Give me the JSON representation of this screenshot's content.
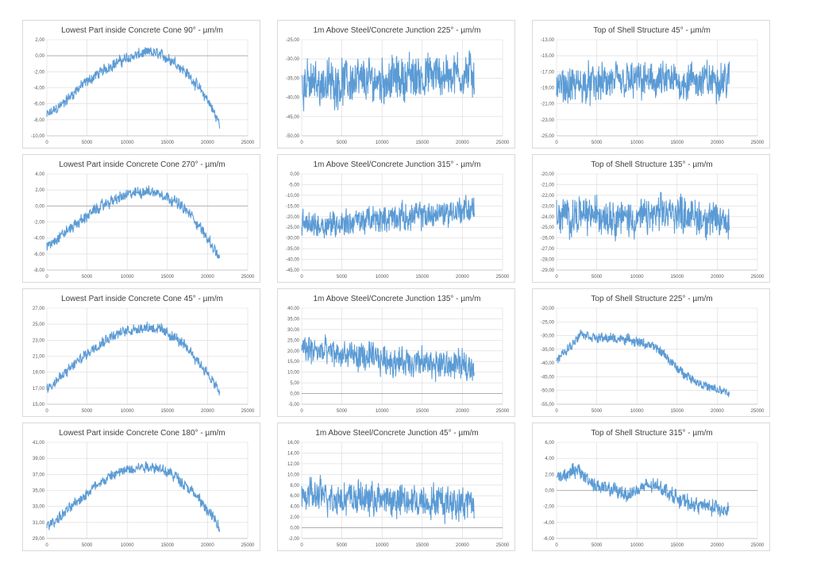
{
  "colors": {
    "series": "#5b9bd5",
    "grid": "#d9d9d9",
    "text": "#404040",
    "border": "#d9d9d9"
  },
  "chart_data": [
    {
      "type": "line",
      "title": "Lowest Part inside Concrete Cone 90° - µm/m",
      "xlim": [
        0,
        25000
      ],
      "ylim": [
        -10,
        2
      ],
      "xticks": [
        "0",
        "5000",
        "10000",
        "15000",
        "20000",
        "25000"
      ],
      "yticks": [
        "-10,00",
        "-8,00",
        "-6,00",
        "-4,00",
        "-2,00",
        "0,00",
        "2,00"
      ],
      "series": [
        {
          "x": [
            0,
            2000,
            4000,
            6000,
            8000,
            10000,
            12000,
            13000,
            14000,
            16000,
            18000,
            20000,
            21500
          ],
          "y": [
            -7.5,
            -6,
            -4,
            -2.5,
            -1.2,
            -0.3,
            0.3,
            0.4,
            0.2,
            -0.8,
            -2.8,
            -5.5,
            -8.5
          ],
          "band": 1.2
        }
      ],
      "grid": true
    },
    {
      "type": "line",
      "title": "1m Above Steel/Concrete Junction 225° - µm/m",
      "xlim": [
        0,
        25000
      ],
      "ylim": [
        -50,
        -25
      ],
      "xticks": [
        "0",
        "5000",
        "10000",
        "15000",
        "20000",
        "25000"
      ],
      "yticks": [
        "-50,00",
        "-45,00",
        "-40,00",
        "-35,00",
        "-30,00",
        "-25,00"
      ],
      "series": [
        {
          "x": [
            0,
            5000,
            10000,
            15000,
            20000,
            21500
          ],
          "y": [
            -36.5,
            -36,
            -35.5,
            -34.5,
            -34,
            -34
          ],
          "band": 10
        }
      ],
      "grid": true
    },
    {
      "type": "line",
      "title": "Top of Shell Structure 45° - µm/m",
      "xlim": [
        0,
        25000
      ],
      "ylim": [
        -25,
        -13
      ],
      "xticks": [
        "0",
        "5000",
        "10000",
        "15000",
        "20000",
        "25000"
      ],
      "yticks": [
        "-25,00",
        "-23,00",
        "-21,00",
        "-19,00",
        "-17,00",
        "-15,00",
        "-13,00"
      ],
      "series": [
        {
          "x": [
            0,
            5000,
            10000,
            15000,
            20000,
            21500
          ],
          "y": [
            -19,
            -18.5,
            -18.2,
            -18.3,
            -18,
            -18
          ],
          "band": 4
        }
      ],
      "grid": true
    },
    {
      "type": "line",
      "title": "Lowest Part inside Concrete Cone 270° - µm/m",
      "xlim": [
        0,
        25000
      ],
      "ylim": [
        -8,
        4
      ],
      "xticks": [
        "0",
        "5000",
        "10000",
        "15000",
        "20000",
        "25000"
      ],
      "yticks": [
        "-8,00",
        "-6,00",
        "-4,00",
        "-2,00",
        "0,00",
        "2,00",
        "4,00"
      ],
      "series": [
        {
          "x": [
            0,
            2000,
            4000,
            6000,
            8000,
            10000,
            12000,
            13000,
            14000,
            16000,
            18000,
            20000,
            21500
          ],
          "y": [
            -5,
            -3.5,
            -2,
            -0.5,
            0.6,
            1.4,
            1.8,
            1.8,
            1.6,
            0.6,
            -1.2,
            -4,
            -6.5
          ],
          "band": 1.2
        }
      ],
      "grid": true
    },
    {
      "type": "line",
      "title": "1m Above Steel/Concrete Junction 315° - µm/m",
      "xlim": [
        0,
        25000
      ],
      "ylim": [
        -45,
        0
      ],
      "xticks": [
        "0",
        "5000",
        "10000",
        "15000",
        "20000",
        "25000"
      ],
      "yticks": [
        "-45,00",
        "-40,00",
        "-35,00",
        "-30,00",
        "-25,00",
        "-20,00",
        "-15,00",
        "-10,00",
        "-5,00",
        "0,00"
      ],
      "series": [
        {
          "x": [
            0,
            5000,
            10000,
            15000,
            20000,
            21500
          ],
          "y": [
            -24,
            -23,
            -21,
            -19.5,
            -17,
            -16
          ],
          "band": 11
        }
      ],
      "grid": true
    },
    {
      "type": "line",
      "title": "Top of Shell Structure 135° - µm/m",
      "xlim": [
        0,
        25000
      ],
      "ylim": [
        -29,
        -20
      ],
      "xticks": [
        "0",
        "5000",
        "10000",
        "15000",
        "20000",
        "25000"
      ],
      "yticks": [
        "-29,00",
        "-28,00",
        "-27,00",
        "-26,00",
        "-25,00",
        "-24,00",
        "-23,00",
        "-22,00",
        "-21,00",
        "-20,00"
      ],
      "series": [
        {
          "x": [
            0,
            5000,
            10000,
            15000,
            20000,
            21500
          ],
          "y": [
            -24,
            -23.8,
            -24.2,
            -23.5,
            -24.5,
            -24.5
          ],
          "band": 3
        }
      ],
      "grid": true
    },
    {
      "type": "line",
      "title": "Lowest Part inside Concrete Cone 45° - µm/m",
      "xlim": [
        0,
        25000
      ],
      "ylim": [
        15,
        27
      ],
      "xticks": [
        "0",
        "5000",
        "10000",
        "15000",
        "20000",
        "25000"
      ],
      "yticks": [
        "15,00",
        "17,00",
        "19,00",
        "21,00",
        "23,00",
        "25,00",
        "27,00"
      ],
      "series": [
        {
          "x": [
            0,
            2000,
            4000,
            6000,
            8000,
            10000,
            12000,
            13000,
            14000,
            16000,
            18000,
            20000,
            21500
          ],
          "y": [
            17,
            18.6,
            20.5,
            22.2,
            23.5,
            24.2,
            24.6,
            24.6,
            24.4,
            23.3,
            21.5,
            18.8,
            16.5
          ],
          "band": 1.2
        }
      ],
      "grid": true
    },
    {
      "type": "line",
      "title": "1m Above Steel/Concrete Junction 135° - µm/m",
      "xlim": [
        0,
        25000
      ],
      "ylim": [
        -5,
        40
      ],
      "xticks": [
        "0",
        "5000",
        "10000",
        "15000",
        "20000",
        "25000"
      ],
      "yticks": [
        "-5,00",
        "0,00",
        "5,00",
        "10,00",
        "15,00",
        "20,00",
        "25,00",
        "30,00",
        "35,00",
        "40,00"
      ],
      "series": [
        {
          "x": [
            0,
            5000,
            10000,
            15000,
            20000,
            21500
          ],
          "y": [
            21,
            18,
            16,
            14,
            13,
            13
          ],
          "band": 12
        }
      ],
      "grid": true
    },
    {
      "type": "line",
      "title": "Top of Shell Structure 225° - µm/m",
      "xlim": [
        0,
        25000
      ],
      "ylim": [
        -55,
        -20
      ],
      "xticks": [
        "0",
        "5000",
        "10000",
        "15000",
        "20000",
        "25000"
      ],
      "yticks": [
        "-55,00",
        "-50,00",
        "-45,00",
        "-40,00",
        "-35,00",
        "-30,00",
        "-25,00",
        "-20,00"
      ],
      "series": [
        {
          "x": [
            0,
            1000,
            2000,
            3000,
            5000,
            7000,
            9000,
            11000,
            12000,
            13500,
            15000,
            17000,
            19000,
            21500
          ],
          "y": [
            -39,
            -36,
            -33,
            -29,
            -31,
            -31,
            -31.5,
            -33,
            -34,
            -37,
            -42,
            -46,
            -49,
            -51
          ],
          "band": 3
        }
      ],
      "grid": true
    },
    {
      "type": "line",
      "title": "Lowest Part inside Concrete Cone 180° - µm/m",
      "xlim": [
        0,
        25000
      ],
      "ylim": [
        29,
        41
      ],
      "xticks": [
        "0",
        "5000",
        "10000",
        "15000",
        "20000",
        "25000"
      ],
      "yticks": [
        "29,00",
        "31,00",
        "33,00",
        "35,00",
        "37,00",
        "39,00",
        "41,00"
      ],
      "series": [
        {
          "x": [
            0,
            2000,
            4000,
            6000,
            8000,
            10000,
            12000,
            13000,
            14000,
            16000,
            18000,
            20000,
            21500
          ],
          "y": [
            30.5,
            32,
            33.8,
            35.5,
            36.8,
            37.6,
            38,
            38,
            37.8,
            36.8,
            35,
            32.5,
            30.5
          ],
          "band": 1.2
        }
      ],
      "grid": true
    },
    {
      "type": "line",
      "title": "1m Above Steel/Concrete Junction 45° - µm/m",
      "xlim": [
        0,
        25000
      ],
      "ylim": [
        -2,
        16
      ],
      "xticks": [
        "0",
        "5000",
        "10000",
        "15000",
        "20000",
        "25000"
      ],
      "yticks": [
        "-2,00",
        "0,00",
        "2,00",
        "4,00",
        "6,00",
        "8,00",
        "10,00",
        "12,00",
        "14,00",
        "16,00"
      ],
      "series": [
        {
          "x": [
            0,
            5000,
            10000,
            15000,
            20000,
            21500
          ],
          "y": [
            6,
            5.8,
            5.2,
            5,
            4.8,
            4.8
          ],
          "band": 5.5
        }
      ],
      "grid": true
    },
    {
      "type": "line",
      "title": "Top of Shell Structure 315° - µm/m",
      "xlim": [
        0,
        25000
      ],
      "ylim": [
        -6,
        6
      ],
      "xticks": [
        "0",
        "5000",
        "10000",
        "15000",
        "20000",
        "25000"
      ],
      "yticks": [
        "-6,00",
        "-4,00",
        "-2,00",
        "0,00",
        "2,00",
        "4,00",
        "6,00"
      ],
      "series": [
        {
          "x": [
            0,
            2000,
            3000,
            5000,
            7000,
            9000,
            11000,
            13000,
            15000,
            17000,
            19000,
            21500
          ],
          "y": [
            1.5,
            2.5,
            2.2,
            0.5,
            0,
            -0.5,
            0.5,
            0.5,
            -1,
            -1.8,
            -2,
            -2.5
          ],
          "band": 1.6
        }
      ],
      "grid": true
    }
  ]
}
